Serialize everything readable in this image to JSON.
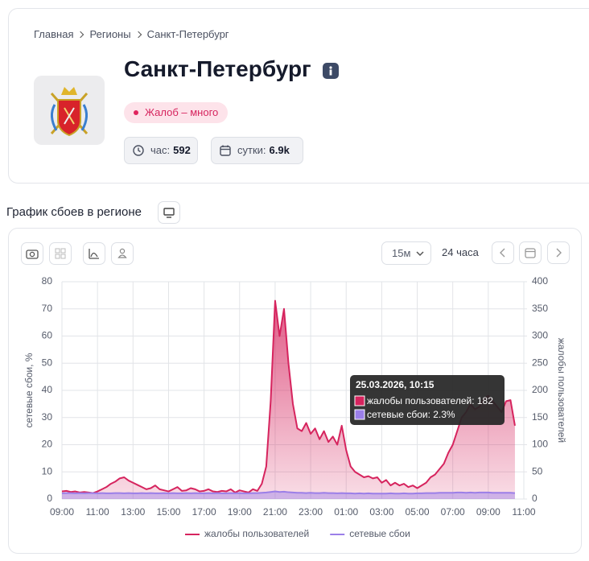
{
  "breadcrumbs": [
    "Главная",
    "Регионы",
    "Санкт-Петербург"
  ],
  "region": {
    "title": "Санкт-Петербург",
    "status": "Жалоб – много",
    "stats": [
      {
        "label": "час:",
        "value": "592"
      },
      {
        "label": "сутки:",
        "value": "6.9k"
      }
    ]
  },
  "section_title": "График сбоев в регионе",
  "toolbar": {
    "interval": "15м",
    "period": "24 часа"
  },
  "tooltip": {
    "title": "25.03.2026, 10:15",
    "items": [
      "жалобы пользователей: 182",
      "сетевые сбои: 2.3%"
    ]
  },
  "chart_data": {
    "type": "line",
    "ylabel": "сетевые сбои, %",
    "y2label": "жалобы пользователей",
    "x": [
      "09:00",
      "09:15",
      "09:30",
      "09:45",
      "10:00",
      "10:15",
      "10:30",
      "10:45",
      "11:00",
      "11:15",
      "11:30",
      "11:45",
      "12:00",
      "12:15",
      "12:30",
      "12:45",
      "13:00",
      "13:15",
      "13:30",
      "13:45",
      "14:00",
      "14:15",
      "14:30",
      "14:45",
      "15:00",
      "15:15",
      "15:30",
      "15:45",
      "16:00",
      "16:15",
      "16:30",
      "16:45",
      "17:00",
      "17:15",
      "17:30",
      "17:45",
      "18:00",
      "18:15",
      "18:30",
      "18:45",
      "19:00",
      "19:15",
      "19:30",
      "19:45",
      "20:00",
      "20:15",
      "20:30",
      "20:45",
      "21:00",
      "21:15",
      "21:30",
      "21:45",
      "22:00",
      "22:15",
      "22:30",
      "22:45",
      "23:00",
      "23:15",
      "23:30",
      "23:45",
      "00:00",
      "00:15",
      "00:30",
      "00:45",
      "01:00",
      "01:15",
      "01:30",
      "01:45",
      "02:00",
      "02:15",
      "02:30",
      "02:45",
      "03:00",
      "03:15",
      "03:30",
      "03:45",
      "04:00",
      "04:15",
      "04:30",
      "04:45",
      "05:00",
      "05:15",
      "05:30",
      "05:45",
      "06:00",
      "06:15",
      "06:30",
      "06:45",
      "07:00",
      "07:15",
      "07:30",
      "07:45",
      "08:00",
      "08:15",
      "08:30",
      "08:45",
      "09:00",
      "09:15",
      "09:30",
      "09:45",
      "10:00",
      "10:15",
      "10:30",
      "10:45",
      "11:00"
    ],
    "xticks": [
      "09:00",
      "11:00",
      "13:00",
      "15:00",
      "17:00",
      "19:00",
      "21:00",
      "23:00",
      "01:00",
      "03:00",
      "05:00",
      "07:00",
      "09:00",
      "11:00"
    ],
    "ylim": [
      0,
      80
    ],
    "yticks": [
      0,
      10,
      20,
      30,
      40,
      50,
      60,
      70,
      80
    ],
    "y2lim": [
      0,
      400
    ],
    "y2ticks": [
      0,
      50,
      100,
      150,
      200,
      250,
      300,
      350,
      400
    ],
    "grid": true,
    "legend": "bottom",
    "series": [
      {
        "name": "жалобы пользователей",
        "color": "#d6245e",
        "axis": "y2",
        "values": [
          14,
          15,
          13,
          14,
          12,
          13,
          12,
          11,
          14,
          18,
          22,
          28,
          32,
          38,
          40,
          34,
          30,
          26,
          22,
          18,
          20,
          25,
          18,
          16,
          14,
          18,
          22,
          15,
          16,
          20,
          18,
          14,
          15,
          18,
          14,
          13,
          15,
          14,
          18,
          12,
          16,
          14,
          12,
          18,
          15,
          28,
          60,
          180,
          365,
          300,
          350,
          250,
          175,
          130,
          125,
          140,
          120,
          130,
          110,
          125,
          105,
          115,
          100,
          135,
          90,
          60,
          50,
          45,
          40,
          42,
          38,
          40,
          30,
          35,
          25,
          30,
          25,
          28,
          22,
          25,
          20,
          25,
          30,
          40,
          45,
          55,
          65,
          85,
          100,
          125,
          150,
          160,
          175,
          165,
          170,
          185,
          190,
          180,
          170,
          160,
          180,
          182,
          135,
          null,
          null
        ]
      },
      {
        "name": "сетевые сбои",
        "color": "#9b7fe8",
        "values": [
          2.1,
          2.2,
          2.2,
          2.1,
          2.2,
          2.1,
          2.2,
          2.2,
          2.1,
          2.2,
          2.1,
          2.1,
          2.2,
          2.2,
          2.1,
          2.2,
          2.1,
          2.1,
          2.2,
          2.1,
          2.2,
          2.1,
          2.1,
          2.2,
          2.1,
          2.2,
          2.1,
          2.1,
          2.2,
          2.1,
          2.2,
          2.1,
          2.1,
          2.2,
          2.1,
          2.2,
          2.1,
          2.1,
          2.2,
          2.1,
          2.2,
          2.1,
          2.1,
          2.2,
          2.2,
          2.3,
          2.4,
          2.6,
          2.8,
          2.6,
          2.7,
          2.5,
          2.4,
          2.3,
          2.3,
          2.2,
          2.3,
          2.2,
          2.2,
          2.3,
          2.2,
          2.2,
          2.1,
          2.2,
          2.1,
          2.1,
          2.0,
          2.1,
          2.0,
          2.1,
          2.0,
          2.0,
          2.0,
          2.0,
          2.1,
          2.0,
          2.0,
          2.1,
          2.0,
          2.0,
          2.1,
          2.1,
          2.2,
          2.2,
          2.2,
          2.3,
          2.3,
          2.3,
          2.3,
          2.4,
          2.4,
          2.3,
          2.4,
          2.3,
          2.4,
          2.4,
          2.4,
          2.3,
          2.3,
          2.3,
          2.3,
          2.3,
          2.2,
          null,
          null
        ]
      }
    ]
  }
}
